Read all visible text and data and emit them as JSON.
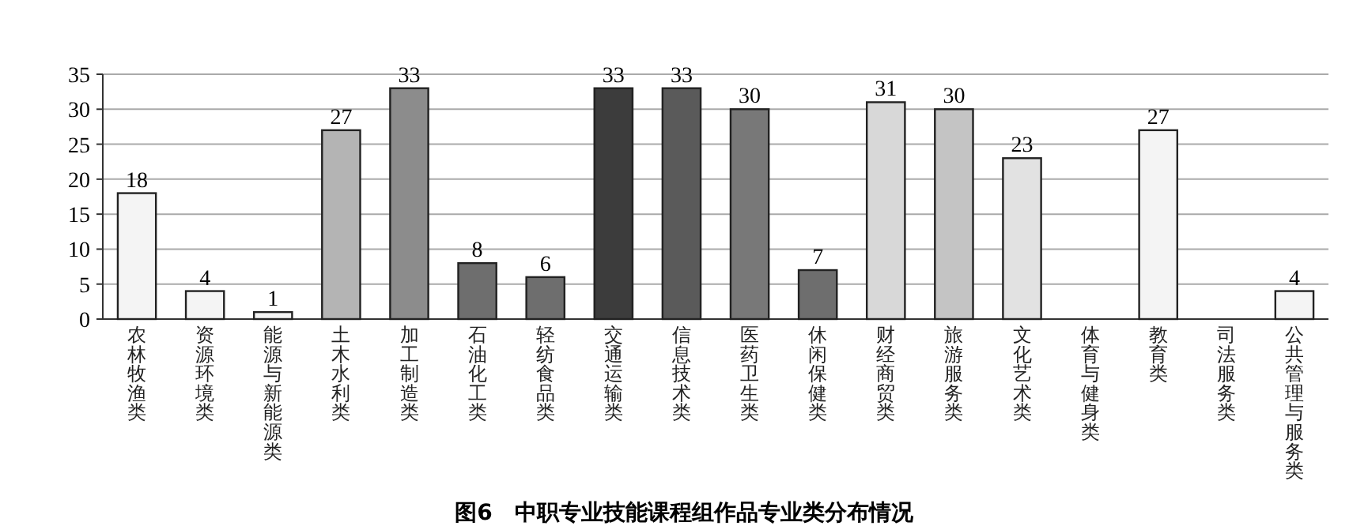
{
  "chart_data": {
    "type": "bar",
    "title": "图6　中职专业技能课程组作品专业类分布情况",
    "categories": [
      "农林牧渔类",
      "资源环境类",
      "能源与新能源类",
      "土木水利类",
      "加工制造类",
      "石油化工类",
      "轻纺食品类",
      "交通运输类",
      "信息技术类",
      "医药卫生类",
      "休闲保健类",
      "财经商贸类",
      "旅游服务类",
      "文化艺术类",
      "体育与健身类",
      "教育类",
      "司法服务类",
      "公共管理与服务类"
    ],
    "values": [
      18,
      4,
      1,
      27,
      33,
      8,
      6,
      33,
      33,
      30,
      7,
      31,
      30,
      23,
      null,
      27,
      null,
      4
    ],
    "colors": [
      "#f4f4f4",
      "#f4f4f4",
      "#f4f4f4",
      "#b4b4b4",
      "#8c8c8c",
      "#6e6e6e",
      "#6e6e6e",
      "#3c3c3c",
      "#5a5a5a",
      "#787878",
      "#6e6e6e",
      "#d8d8d8",
      "#c4c4c4",
      "#e2e2e2",
      null,
      "#f4f4f4",
      null,
      "#f4f4f4"
    ],
    "ylim": [
      0,
      35
    ],
    "yticks": [
      0,
      5,
      10,
      15,
      20,
      25,
      30,
      35
    ],
    "grid": "y",
    "data_labels": true
  }
}
